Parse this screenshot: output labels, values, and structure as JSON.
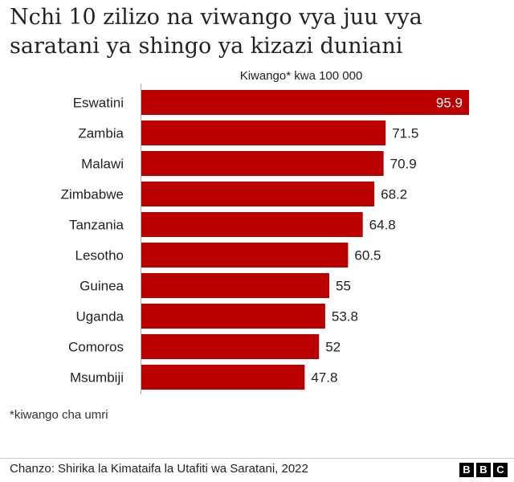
{
  "title": "Nchi 10 zilizo na viwango vya juu vya saratani ya shingo ya kizazi duniani",
  "subtitle": "Kiwango* kwa 100 000",
  "footnote": "*kiwango cha umri",
  "source": "Chanzo: Shirika la Kimataifa la Utafiti wa Saratani, 2022",
  "logo": [
    "B",
    "B",
    "C"
  ],
  "colors": {
    "bar": "#bb0000",
    "axis": "#aaaaaa",
    "label_inside": "#ffffff"
  },
  "chart_data": {
    "type": "bar",
    "orientation": "horizontal",
    "title": "Nchi 10 zilizo na viwango vya juu vya saratani ya shingo ya kizazi duniani",
    "subtitle": "Kiwango* kwa 100 000",
    "categories": [
      "Eswatini",
      "Zambia",
      "Malawi",
      "Zimbabwe",
      "Tanzania",
      "Lesotho",
      "Guinea",
      "Uganda",
      "Comoros",
      "Msumbiji"
    ],
    "values": [
      95.9,
      71.5,
      70.9,
      68.2,
      64.8,
      60.5,
      55,
      53.8,
      52,
      47.8
    ],
    "value_labels": [
      "95.9",
      "71.5",
      "70.9",
      "68.2",
      "64.8",
      "60.5",
      "55",
      "53.8",
      "52",
      "47.8"
    ],
    "xlim": [
      0,
      95.9
    ],
    "grid": false,
    "legend": "none"
  }
}
